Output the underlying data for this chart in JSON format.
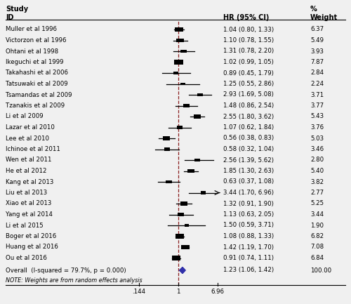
{
  "studies": [
    {
      "label": "Muller et al 1996",
      "hr": 1.04,
      "lo": 0.8,
      "hi": 1.33,
      "weight": 6.37
    },
    {
      "label": "Victorzon et al 1996",
      "hr": 1.1,
      "lo": 0.78,
      "hi": 1.55,
      "weight": 5.49
    },
    {
      "label": "Ohtani et al 1998",
      "hr": 1.31,
      "lo": 0.78,
      "hi": 2.2,
      "weight": 3.93
    },
    {
      "label": "Ikeguchi et al 1999",
      "hr": 1.02,
      "lo": 0.99,
      "hi": 1.05,
      "weight": 7.87
    },
    {
      "label": "Takahashi et al 2006",
      "hr": 0.89,
      "lo": 0.45,
      "hi": 1.79,
      "weight": 2.84
    },
    {
      "label": "Tatsuwaki et al 2009",
      "hr": 1.25,
      "lo": 0.55,
      "hi": 2.86,
      "weight": 2.24
    },
    {
      "label": "Tsamandas et al 2009",
      "hr": 2.93,
      "lo": 1.69,
      "hi": 5.08,
      "weight": 3.71
    },
    {
      "label": "Tzanakis et al 2009",
      "hr": 1.48,
      "lo": 0.86,
      "hi": 2.54,
      "weight": 3.77
    },
    {
      "label": "Li et al 2009",
      "hr": 2.55,
      "lo": 1.8,
      "hi": 3.62,
      "weight": 5.43
    },
    {
      "label": "Lazar et al 2010",
      "hr": 1.07,
      "lo": 0.62,
      "hi": 1.84,
      "weight": 3.76
    },
    {
      "label": "Lee et al 2010",
      "hr": 0.56,
      "lo": 0.38,
      "hi": 0.83,
      "weight": 5.03
    },
    {
      "label": "Ichinoe et al 2011",
      "hr": 0.58,
      "lo": 0.32,
      "hi": 1.04,
      "weight": 3.46
    },
    {
      "label": "Wen et al 2011",
      "hr": 2.56,
      "lo": 1.39,
      "hi": 5.62,
      "weight": 2.8
    },
    {
      "label": "He et al 2012",
      "hr": 1.85,
      "lo": 1.3,
      "hi": 2.63,
      "weight": 5.4
    },
    {
      "label": "Kang et al 2013",
      "hr": 0.63,
      "lo": 0.37,
      "hi": 1.08,
      "weight": 3.82
    },
    {
      "label": "Liu et al 2013",
      "hr": 3.44,
      "lo": 1.7,
      "hi": 6.96,
      "weight": 2.77,
      "arrow": true
    },
    {
      "label": "Xiao et al 2013",
      "hr": 1.32,
      "lo": 0.91,
      "hi": 1.9,
      "weight": 5.25
    },
    {
      "label": "Yang et al 2014",
      "hr": 1.13,
      "lo": 0.63,
      "hi": 2.05,
      "weight": 3.44
    },
    {
      "label": "Li et al 2015",
      "hr": 1.5,
      "lo": 0.59,
      "hi": 3.71,
      "weight": 1.9
    },
    {
      "label": "Boger et al 2016",
      "hr": 1.08,
      "lo": 0.88,
      "hi": 1.33,
      "weight": 6.82
    },
    {
      "label": "Huang et al 2016",
      "hr": 1.42,
      "lo": 1.19,
      "hi": 1.7,
      "weight": 7.08
    },
    {
      "label": "Ou et al 2016",
      "hr": 0.91,
      "lo": 0.74,
      "hi": 1.11,
      "weight": 6.84
    }
  ],
  "overall": {
    "hr": 1.23,
    "lo": 1.06,
    "hi": 1.42,
    "label": "Overall  (I-squared = 79.7%, p = 0.000)",
    "weight": 100.0
  },
  "note": "NOTE: Weights are from random effects analysis",
  "xmin": 0.144,
  "xmax": 6.96,
  "xref": 1.0,
  "axis_ticks": [
    0.144,
    1.0,
    6.96
  ],
  "axis_tick_labels": [
    ".144",
    "1",
    "6.96"
  ],
  "col_hr_label": "HR (95% CI)",
  "col_weight_label": "Weight",
  "col_pct_label": "%",
  "dashed_color": "#8B2020",
  "diamond_color": "#3030AA",
  "ci_color": "#000000",
  "box_color": "#000000",
  "header_study": "Study",
  "header_id": "ID",
  "bg_color": "#F0F0F0"
}
